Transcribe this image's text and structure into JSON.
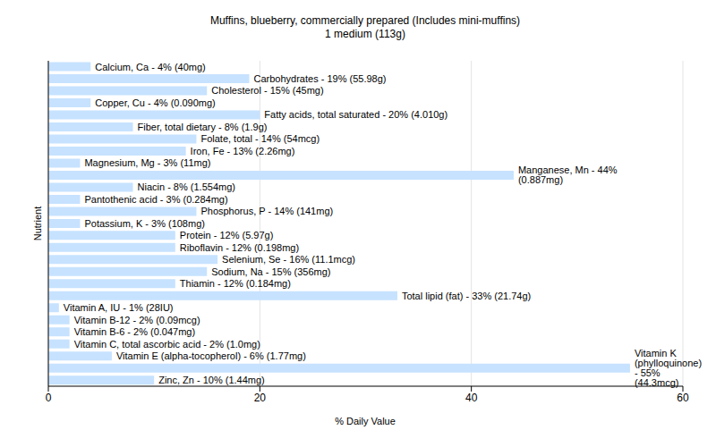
{
  "chart_data": {
    "type": "bar",
    "title": "Muffins, blueberry, commercially prepared (Includes mini-muffins)",
    "subtitle": "1 medium (113g)",
    "x_label": "% Daily Value",
    "y_label": "Nutrient",
    "orientation": "horizontal",
    "values": [
      4,
      19,
      15,
      4,
      20,
      8,
      14,
      13,
      3,
      44,
      8,
      3,
      14,
      3,
      12,
      12,
      16,
      15,
      12,
      33,
      1,
      2,
      2,
      2,
      6,
      55,
      10
    ],
    "value_labels": [
      "Calcium, Ca - 4% (40mg)",
      "Carbohydrates - 19% (55.98g)",
      "Cholesterol - 15% (45mg)",
      "Copper, Cu - 4% (0.090mg)",
      "Fatty acids, total saturated - 20% (4.010g)",
      "Fiber, total dietary - 8% (1.9g)",
      "Folate, total - 14% (54mcg)",
      "Iron, Fe - 13% (2.26mg)",
      "Magnesium, Mg - 3% (11mg)",
      "Manganese, Mn - 44% (0.887mg)",
      "Niacin - 8% (1.554mg)",
      "Pantothenic acid - 3% (0.284mg)",
      "Phosphorus, P - 14% (141mg)",
      "Potassium, K - 3% (108mg)",
      "Protein - 12% (5.97g)",
      "Riboflavin - 12% (0.198mg)",
      "Selenium, Se - 16% (11.1mcg)",
      "Sodium, Na - 15% (356mg)",
      "Thiamin - 12% (0.184mg)",
      "Total lipid (fat) - 33% (21.74g)",
      "Vitamin A, IU - 1% (28IU)",
      "Vitamin B-12 - 2% (0.09mcg)",
      "Vitamin B-6 - 2% (0.047mg)",
      "Vitamin C, total ascorbic acid - 2% (1.0mg)",
      "Vitamin E (alpha-tocopherol) - 6% (1.77mg)",
      "Vitamin K (phylloquinone) - 55% (44.3mcg)",
      "Zinc, Zn - 10% (1.44mg)"
    ],
    "color": "#c6e2ff",
    "xlim": [
      0,
      60
    ],
    "xticks": [
      0,
      20,
      40,
      60
    ],
    "grid": true,
    "data_labels": true,
    "tick_labels": "x"
  }
}
